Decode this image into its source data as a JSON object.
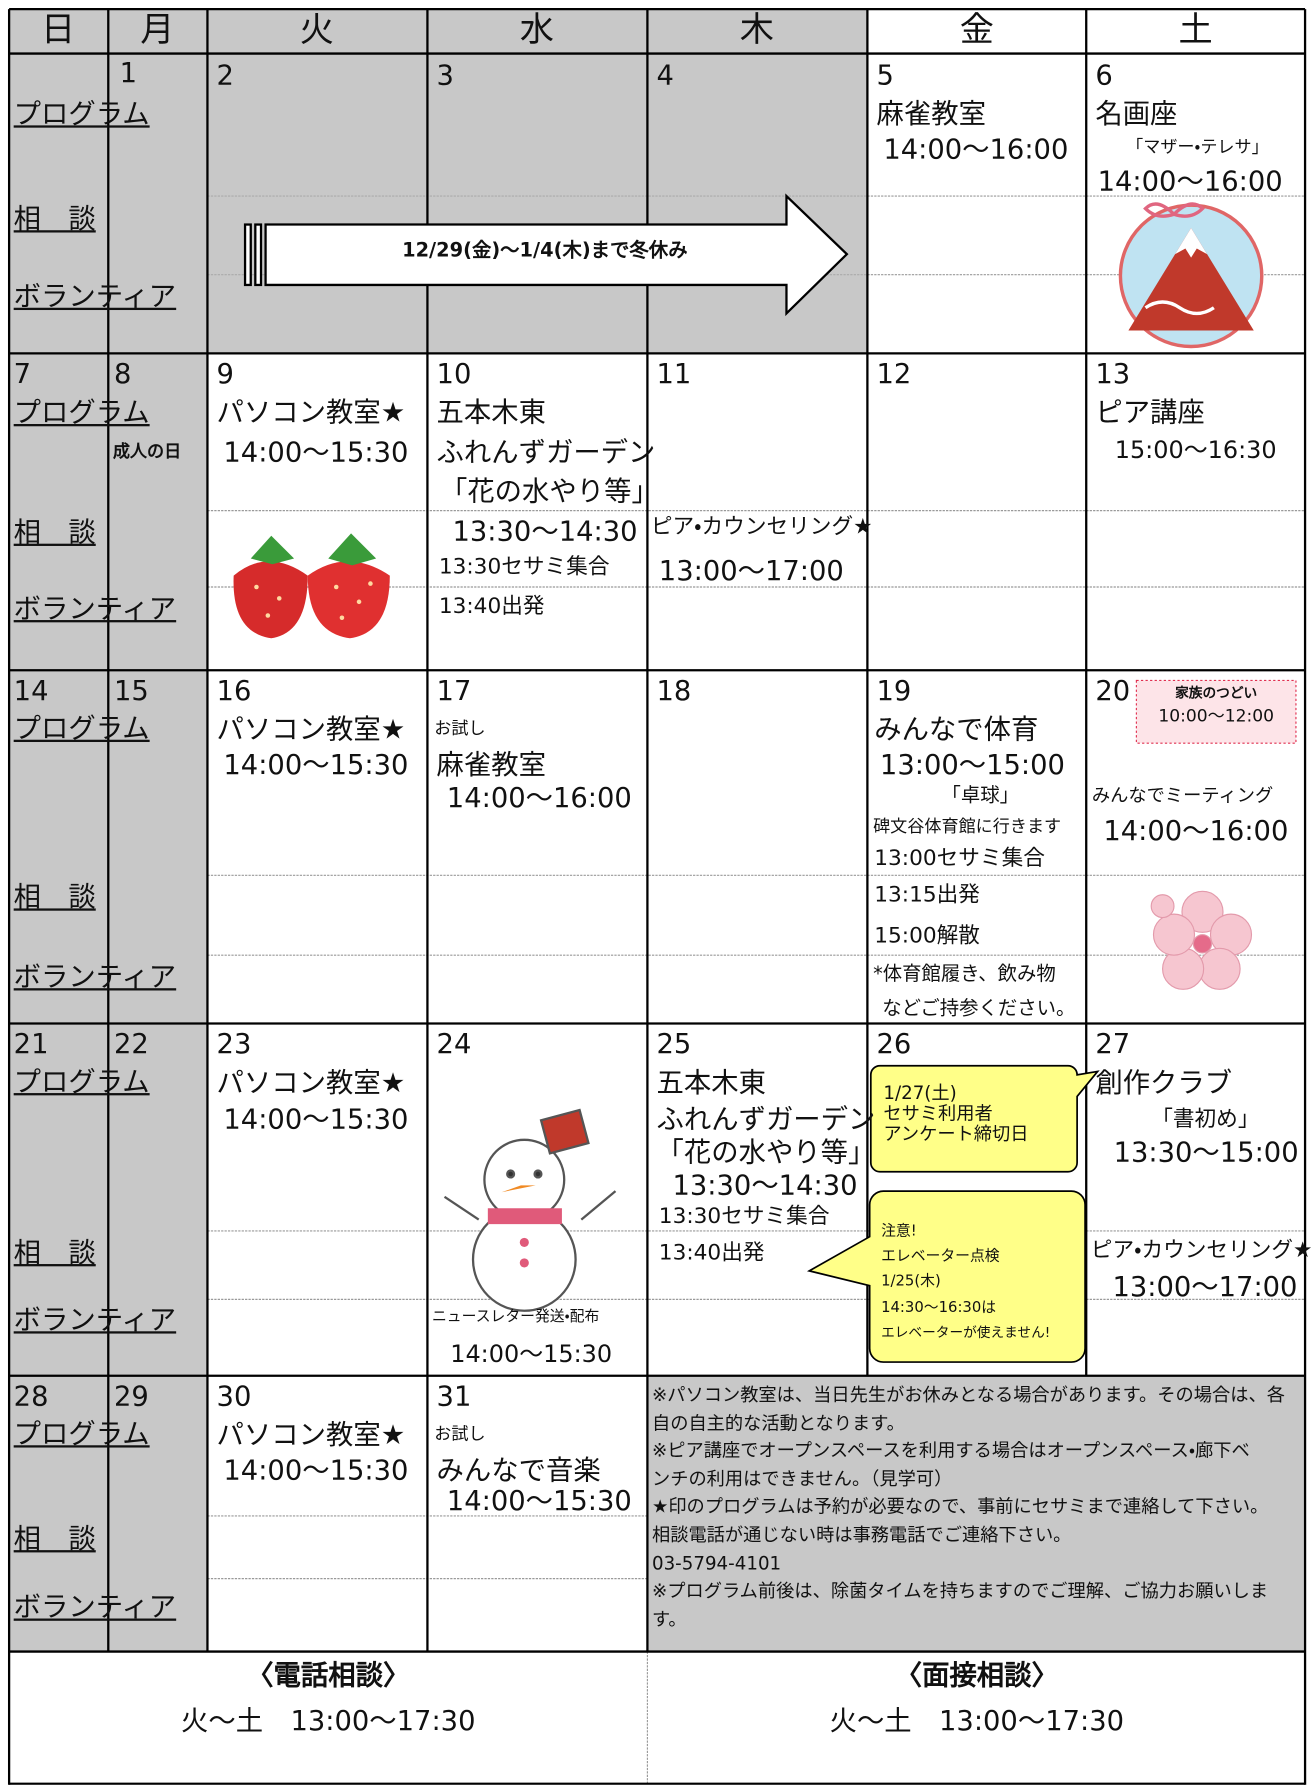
{
  "header": {
    "days": [
      "日",
      "月",
      "火",
      "水",
      "木",
      "金",
      "土"
    ]
  },
  "row_labels": {
    "program": "プログラム",
    "consult": "相　談",
    "volunteer": "ボランティア"
  },
  "holiday_banner": "12/29(金)〜1/4(木)まで冬休み",
  "weeks": [
    {
      "cells": [
        {},
        {
          "date": "1"
        },
        {
          "date": "2"
        },
        {
          "date": "3"
        },
        {
          "date": "4"
        },
        {
          "date": "5",
          "lines": [
            "麻雀教室",
            "14:00〜16:00"
          ]
        },
        {
          "date": "6",
          "lines": [
            "名画座",
            "「マザー・テレサ」",
            "14:00〜16:00"
          ]
        }
      ]
    },
    {
      "cells": [
        {
          "date": "7"
        },
        {
          "date": "8",
          "lines": [
            "成人の日"
          ]
        },
        {
          "date": "9",
          "lines": [
            "パソコン教室★",
            "14:00〜15:30"
          ]
        },
        {
          "date": "10",
          "lines": [
            "五本木東",
            "ふれんずガーデン",
            "「花の水やり等」",
            "13:30〜14:30",
            "13:30セサミ集合",
            "13:40出発"
          ]
        },
        {
          "date": "11",
          "lines": [
            "ピア・カウンセリング★",
            "13:00〜17:00"
          ]
        },
        {
          "date": "12"
        },
        {
          "date": "13",
          "lines": [
            "ピア講座",
            "15:00〜16:30"
          ]
        }
      ]
    },
    {
      "cells": [
        {
          "date": "14"
        },
        {
          "date": "15"
        },
        {
          "date": "16",
          "lines": [
            "パソコン教室★",
            "14:00〜15:30"
          ]
        },
        {
          "date": "17",
          "lines": [
            "お試し",
            "麻雀教室",
            "14:00〜16:00"
          ]
        },
        {
          "date": "18"
        },
        {
          "date": "19",
          "lines": [
            "みんなで体育",
            "13:00〜15:00",
            "「卓球」",
            "碑文谷体育館に行きます",
            "13:00セサミ集合",
            "13:15出発",
            "15:00解散",
            "*体育館履き、飲み物",
            "などご持参ください。"
          ]
        },
        {
          "date": "20",
          "lines": [
            "家族のつどい",
            "10:00〜12:00",
            "みんなでミーティング",
            "14:00〜16:00"
          ]
        }
      ]
    },
    {
      "cells": [
        {
          "date": "21"
        },
        {
          "date": "22"
        },
        {
          "date": "23",
          "lines": [
            "パソコン教室★",
            "14:00〜15:30"
          ]
        },
        {
          "date": "24",
          "lines": [
            "ニュースレター発送・配布",
            "14:00〜15:30"
          ]
        },
        {
          "date": "25",
          "lines": [
            "五本木東",
            "ふれんずガーデン",
            "「花の水やり等」",
            "13:30〜14:30",
            "13:30セサミ集合",
            "13:40出発"
          ]
        },
        {
          "date": "26"
        },
        {
          "date": "27",
          "lines": [
            "創作クラブ",
            "「書初め」",
            "13:30〜15:00",
            "ピア・カウンセリング★",
            "13:00〜17:00"
          ]
        }
      ]
    },
    {
      "cells": [
        {
          "date": "28"
        },
        {
          "date": "29"
        },
        {
          "date": "30",
          "lines": [
            "パソコン教室★",
            "14:00〜15:30"
          ]
        },
        {
          "date": "31",
          "lines": [
            "お試し",
            "みんなで音楽",
            "14:00〜15:30"
          ]
        }
      ]
    }
  ],
  "callouts": [
    {
      "lines": [
        "1/27(土)",
        "セサミ利用者",
        "アンケート締切日"
      ]
    },
    {
      "lines": [
        "注意!",
        "エレベーター点検",
        "1/25(木)",
        "14:30〜16:30は",
        "エレベーターが使えません!"
      ]
    }
  ],
  "notes": [
    "※パソコン教室は、当日先生がお休みとなる場合があります。その場合は、各",
    "自の自主的な活動となります。",
    "※ピア講座でオープンスペースを利用する場合はオープンスペース・廊下ベ",
    "ンチの利用はできません。（見学可）",
    "★印のプログラムは予約が必要なので、事前にセサミまで連絡して下さい。",
    "相談電話が通じない時は事務電話でご連絡下さい。",
    "03-5794-4101",
    "※プログラム前後は、除菌タイムを持ちますのでご理解、ご協力お願いしま",
    "す。"
  ],
  "footer": {
    "phone": {
      "title": "〈電話相談〉",
      "hours": "火〜土　13:00〜17:30"
    },
    "interview": {
      "title": "〈面接相談〉",
      "hours": "火〜土　13:00〜17:30"
    }
  }
}
